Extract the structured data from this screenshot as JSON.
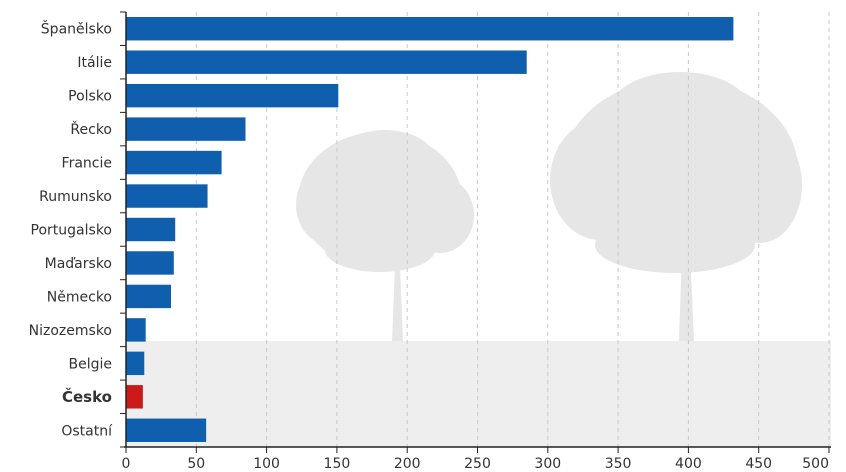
{
  "chart_data": {
    "type": "bar",
    "orientation": "horizontal",
    "categories": [
      "Španělsko",
      "Itálie",
      "Polsko",
      "Řecko",
      "Francie",
      "Rumunsko",
      "Portugalsko",
      "Maďarsko",
      "Německo",
      "Nizozemsko",
      "Belgie",
      "Česko",
      "Ostatní"
    ],
    "values": [
      432,
      285,
      151,
      85,
      68,
      58,
      35,
      34,
      32,
      14,
      13,
      12,
      57
    ],
    "highlight": "Česko",
    "xlim": [
      0,
      500
    ],
    "xticks": [
      0,
      50,
      100,
      150,
      200,
      250,
      300,
      350,
      400,
      450,
      500
    ],
    "grid": true,
    "colors": {
      "bar": "#0f5fae",
      "highlight": "#cc1a1a",
      "grid": "#c8c8c8",
      "axis": "#222222",
      "ground": "#eeeeee",
      "tree": "#e6e6e6"
    }
  }
}
